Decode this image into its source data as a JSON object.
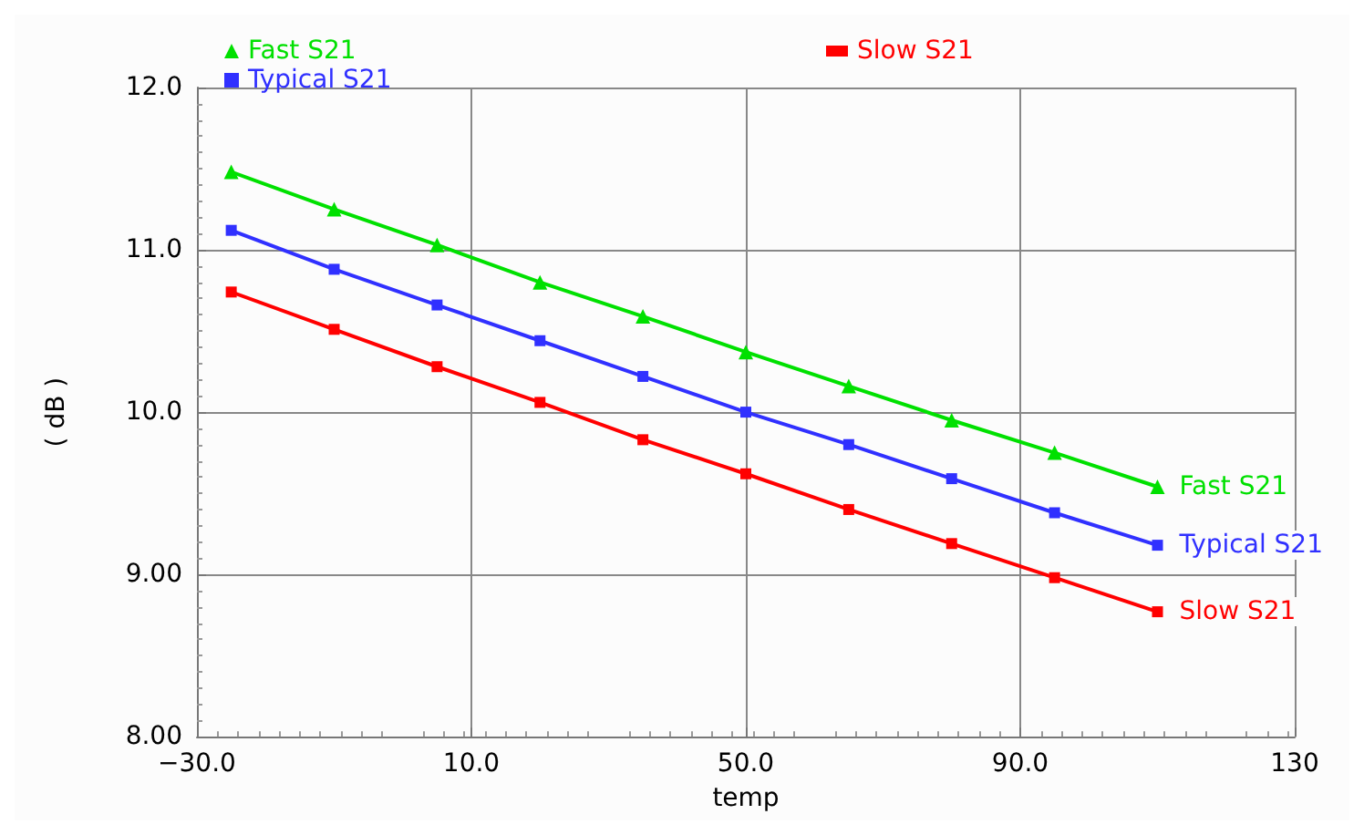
{
  "chart_data": {
    "type": "line",
    "xlabel": "temp",
    "ylabel": "( dB )",
    "x": [
      -25,
      -10,
      5,
      20,
      35,
      50,
      65,
      80,
      95,
      110
    ],
    "series": [
      {
        "name": "Fast S21",
        "color": "#00e000",
        "marker": "triangle",
        "values": [
          11.48,
          11.25,
          11.03,
          10.8,
          10.59,
          10.37,
          10.16,
          9.95,
          9.75,
          9.54
        ]
      },
      {
        "name": "Typical S21",
        "color": "#3030ff",
        "marker": "square",
        "values": [
          11.12,
          10.88,
          10.66,
          10.44,
          10.22,
          10.0,
          9.8,
          9.59,
          9.38,
          9.18
        ]
      },
      {
        "name": "Slow S21",
        "color": "#ff0000",
        "marker": "square",
        "values": [
          10.74,
          10.51,
          10.28,
          10.06,
          9.83,
          9.62,
          9.4,
          9.19,
          8.98,
          8.77
        ]
      }
    ],
    "xlim": [
      -30,
      130
    ],
    "xticks": [
      {
        "value": -30,
        "label": "−30.0"
      },
      {
        "value": 10,
        "label": "10.0"
      },
      {
        "value": 50,
        "label": "50.0"
      },
      {
        "value": 90,
        "label": "90.0"
      },
      {
        "value": 130,
        "label": "130"
      }
    ],
    "ylim": [
      8,
      12
    ],
    "yticks": [
      {
        "value": 8,
        "label": "8.00"
      },
      {
        "value": 9,
        "label": "9.00"
      },
      {
        "value": 10,
        "label": "10.0"
      },
      {
        "value": 11,
        "label": "11.0"
      },
      {
        "value": 12,
        "label": "12.0"
      }
    ],
    "grid": true,
    "legend": "top",
    "line_style": "solid"
  }
}
